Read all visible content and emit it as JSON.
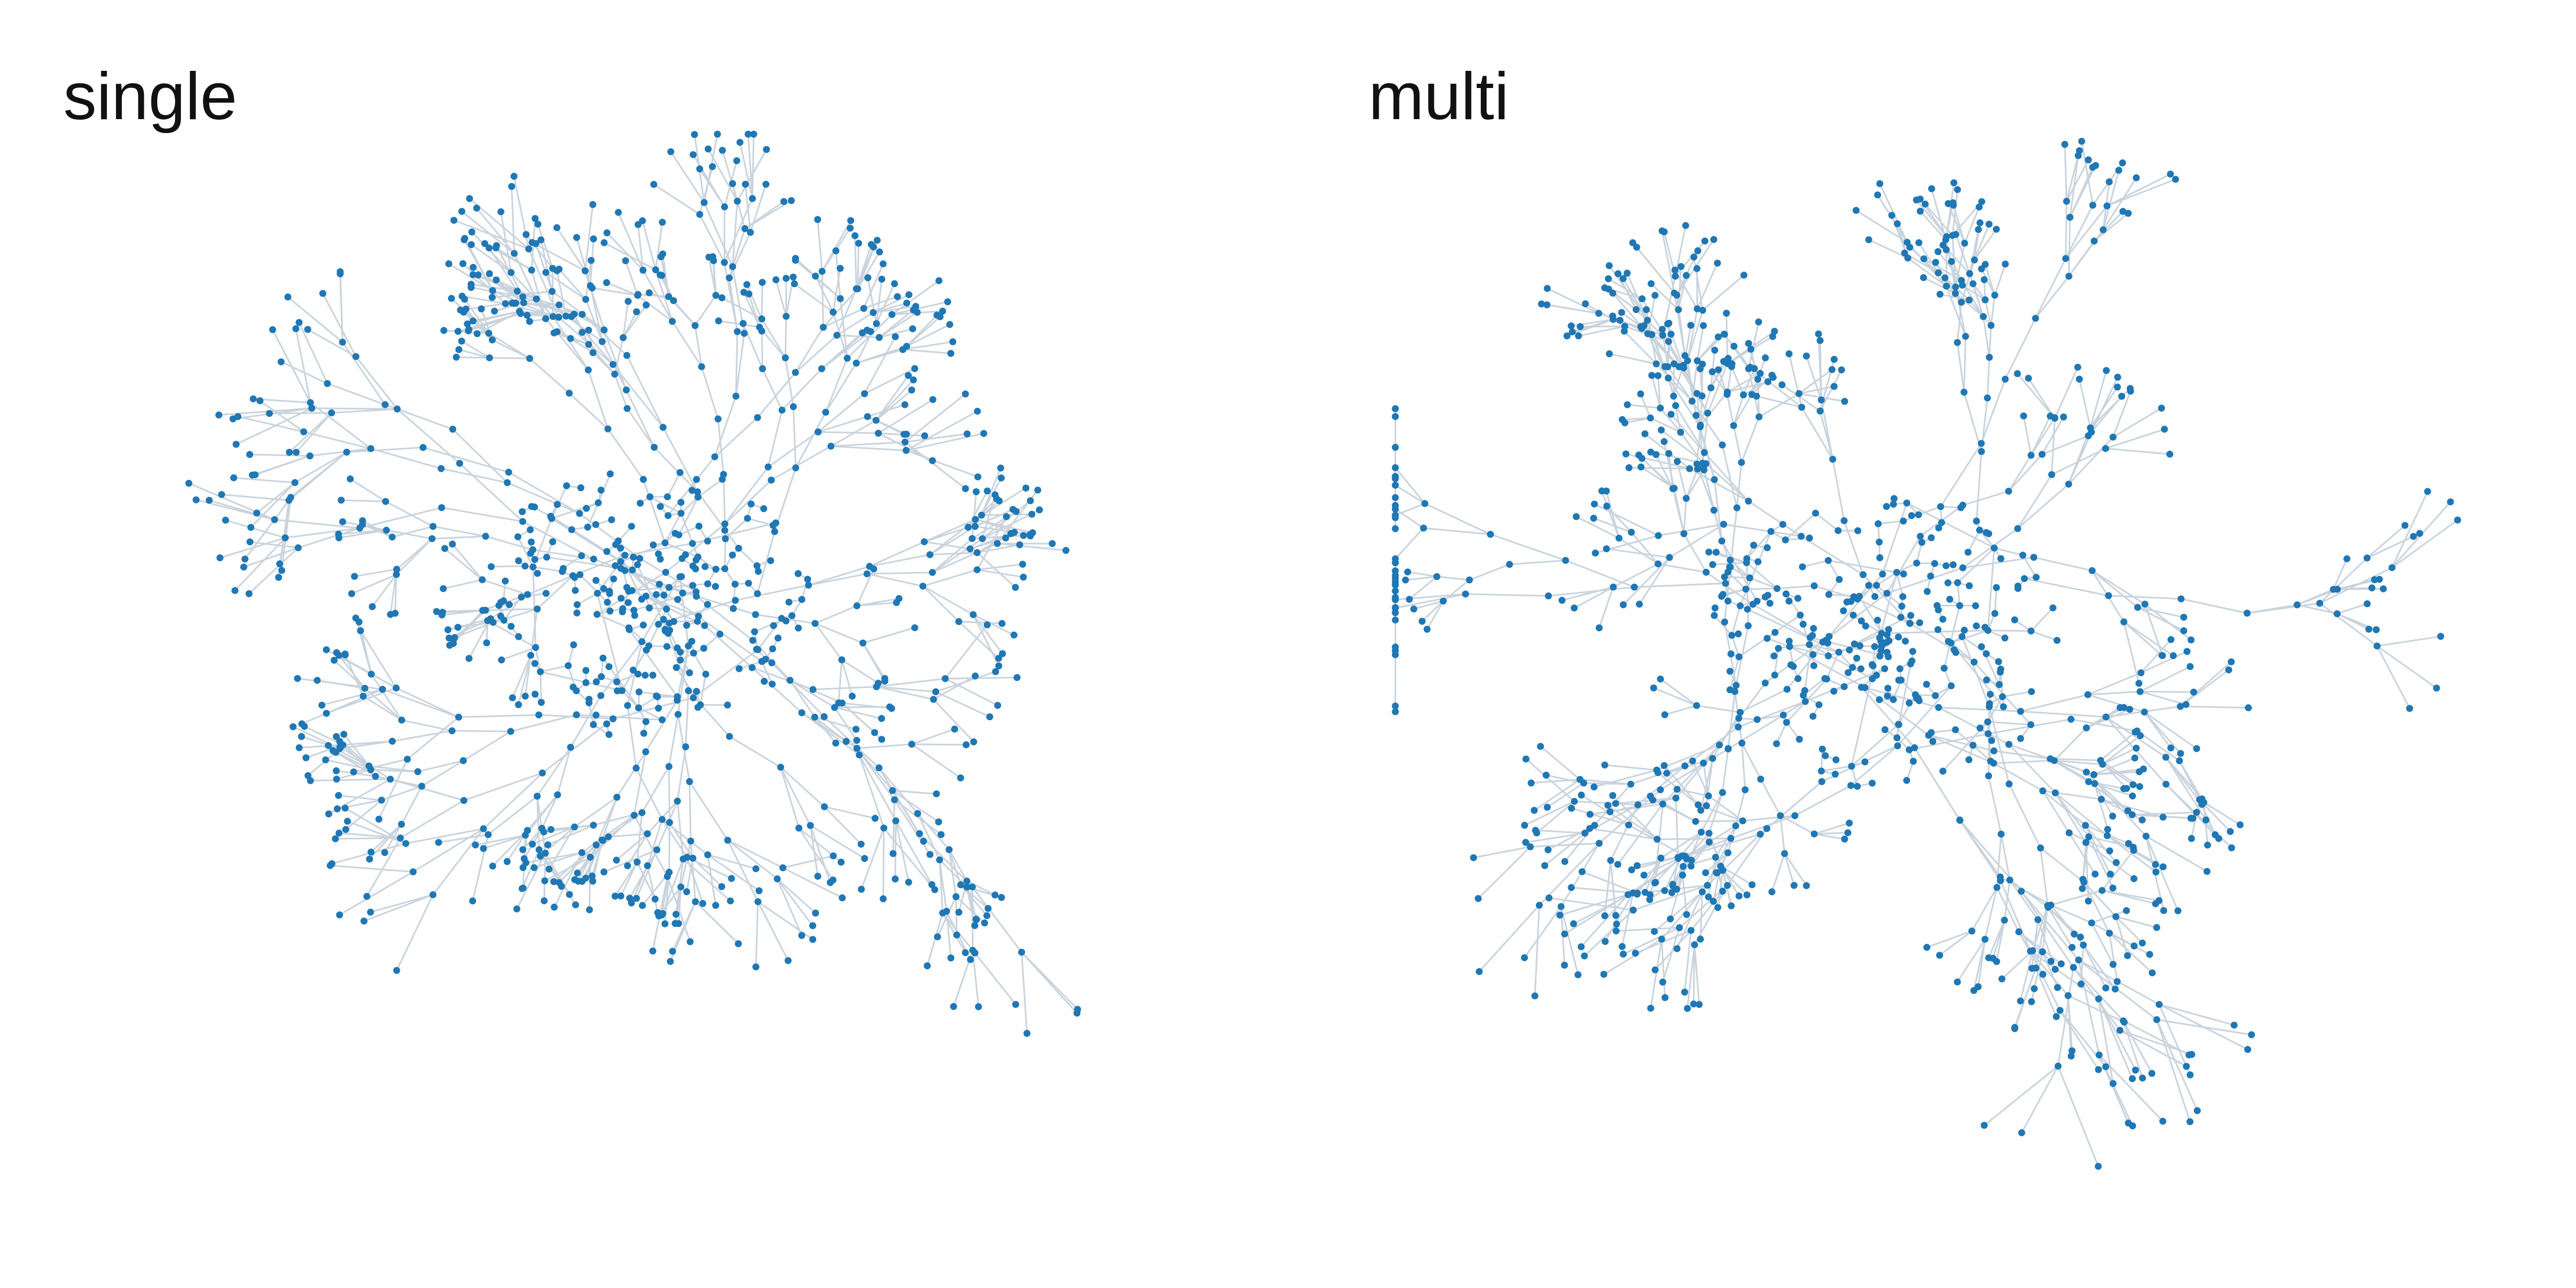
{
  "panels": [
    {
      "id": "single",
      "title": "single"
    },
    {
      "id": "multi",
      "title": "multi"
    }
  ],
  "colors": {
    "node": "#1f77b4",
    "edge": "#c9d3dc",
    "background": "#ffffff",
    "title": "#111111"
  }
}
